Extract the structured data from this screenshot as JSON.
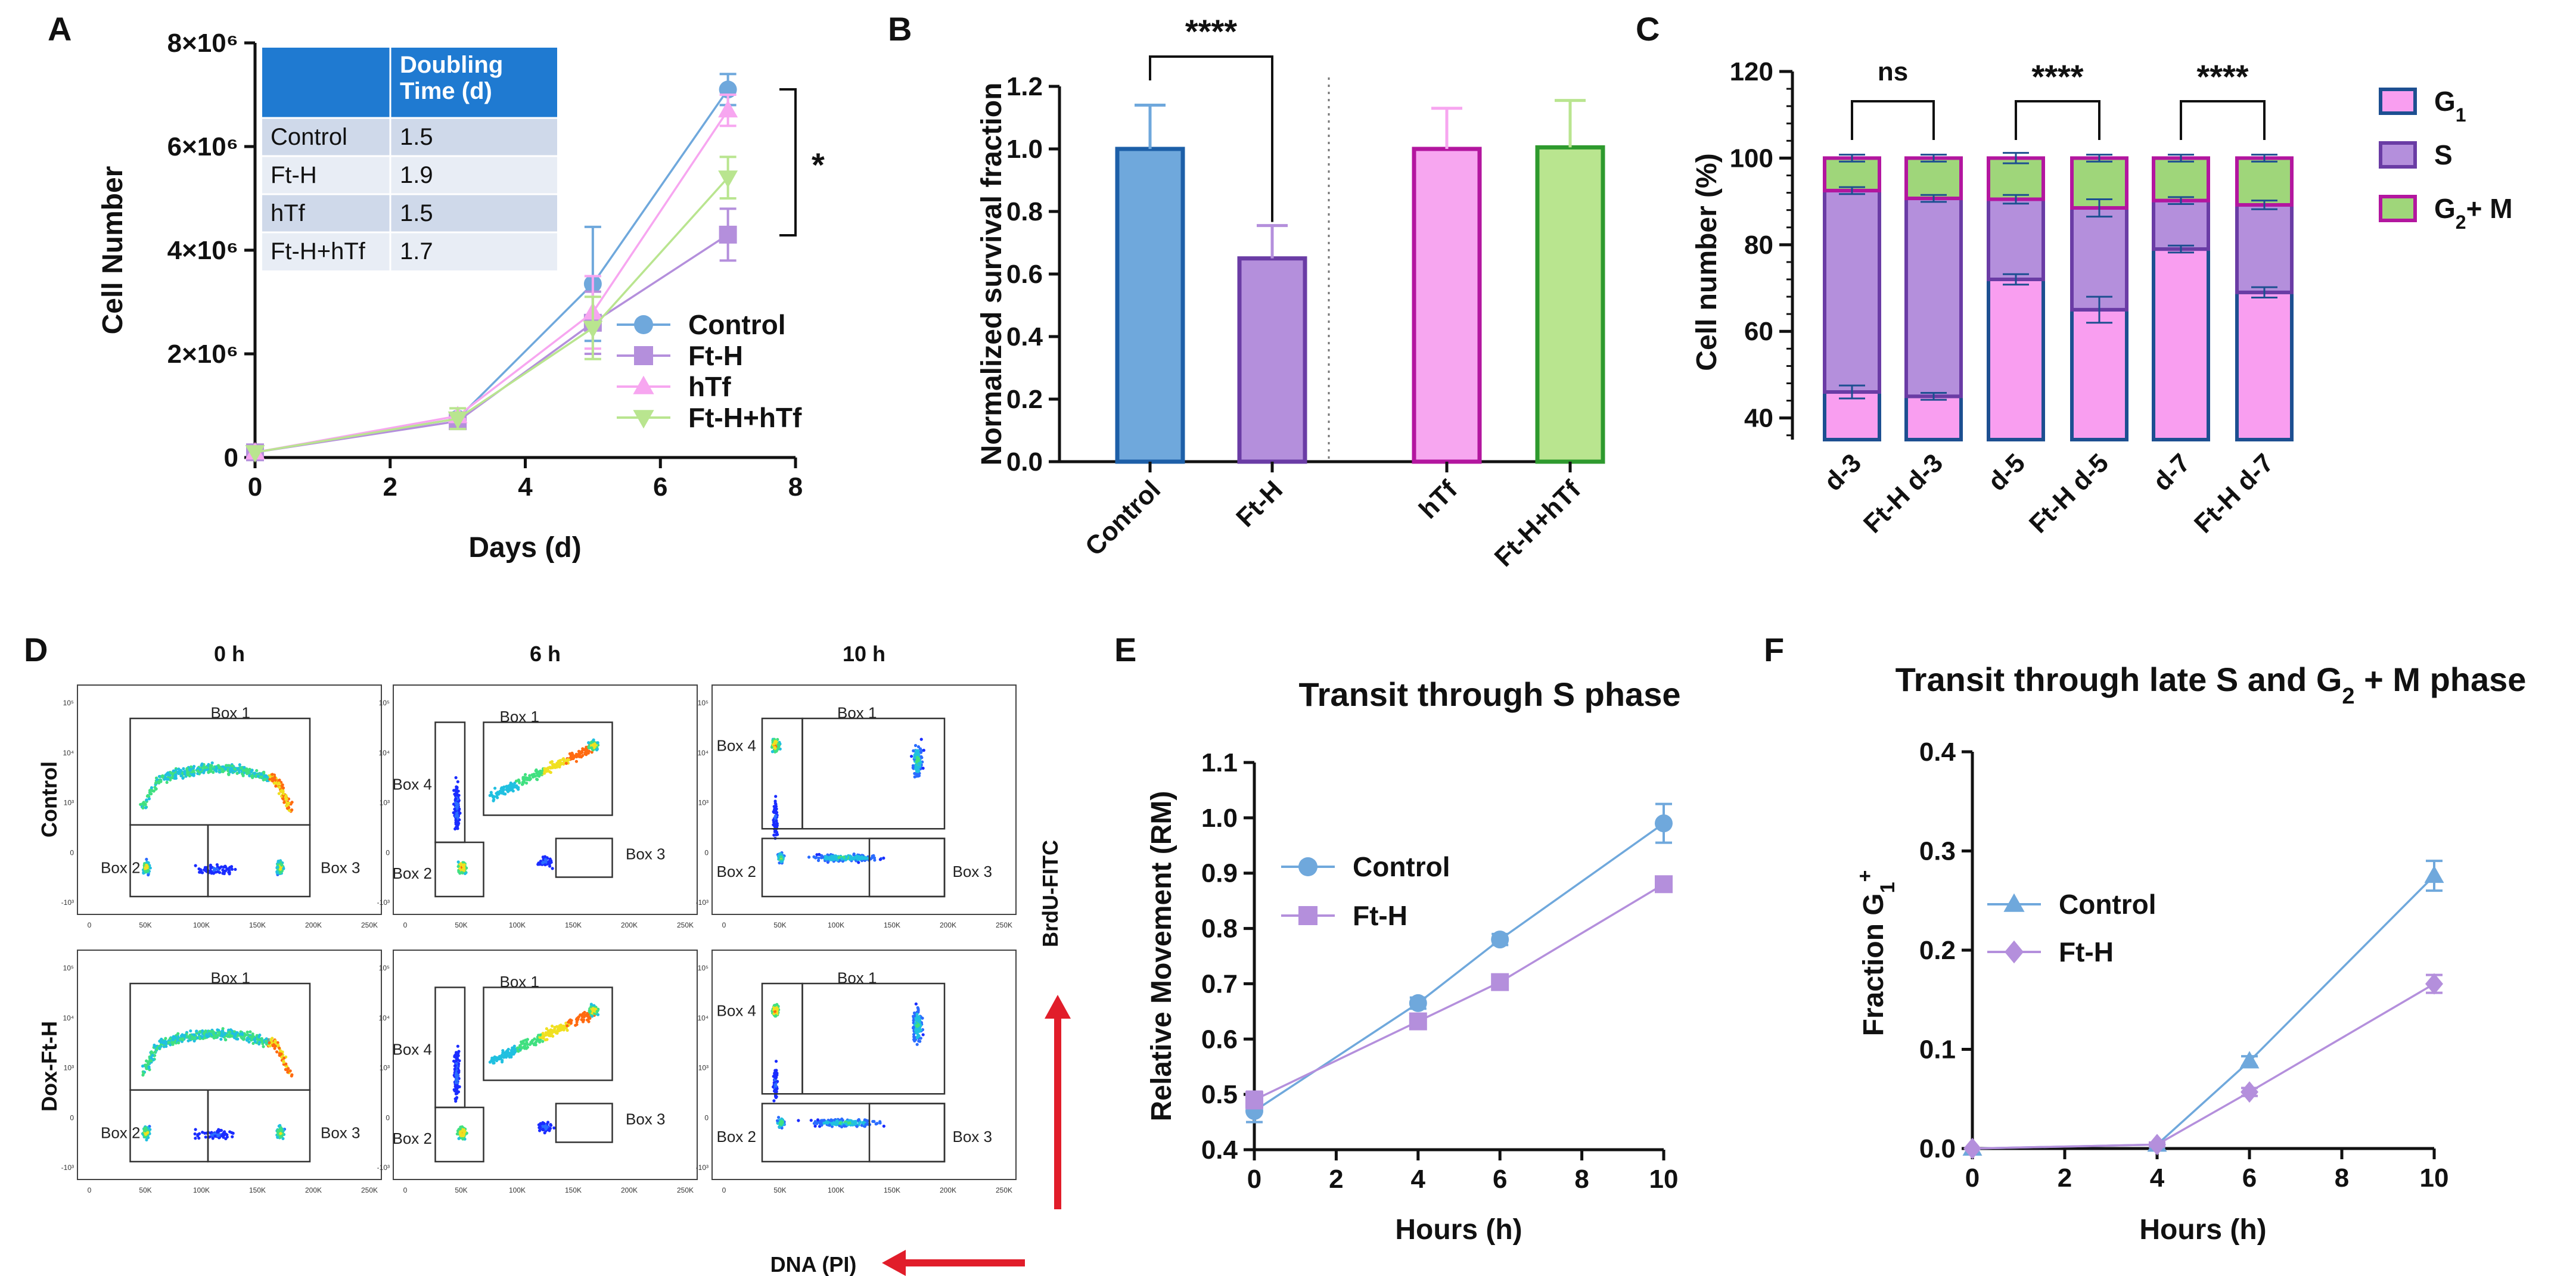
{
  "colors": {
    "control": "#6fa8dc",
    "ft_h": "#b48fdc",
    "htf": "#f7a6f0",
    "fthtf": "#b9e58f",
    "g1_fill": "#f99ef0",
    "s_fill": "#b48fdc",
    "g2m_fill": "#9fd67a",
    "table_head": "#1f7ad1",
    "table_row_a": "#cfd9ea",
    "table_row_b": "#e8edf5",
    "arrow": "#e11d2a"
  },
  "chart_data": [
    {
      "panel": "A",
      "type": "line",
      "xlabel": "Days (d)",
      "ylabel": "Cell Number",
      "x_ticks": [
        "0",
        "2",
        "4",
        "6",
        "8"
      ],
      "xlim": [
        0,
        8
      ],
      "y_ticks": [
        "0",
        "2×10⁶",
        "4×10⁶",
        "6×10⁶",
        "8×10⁶"
      ],
      "ylim": [
        0,
        8000000
      ],
      "x": [
        0,
        3,
        5,
        7
      ],
      "series": [
        {
          "name": "Control",
          "marker": "circle",
          "values": [
            100000,
            750000,
            3350000,
            7100000
          ],
          "errors": [
            0,
            60000,
            1100000,
            300000
          ]
        },
        {
          "name": "Ft-H",
          "marker": "square",
          "values": [
            100000,
            700000,
            2600000,
            4300000
          ],
          "errors": [
            0,
            50000,
            600000,
            500000
          ]
        },
        {
          "name": "hTf",
          "marker": "triangle-up",
          "values": [
            100000,
            800000,
            2800000,
            6700000
          ],
          "errors": [
            0,
            60000,
            700000,
            300000
          ]
        },
        {
          "name": "Ft-H+hTf",
          "marker": "triangle-down",
          "values": [
            100000,
            750000,
            2500000,
            5400000
          ],
          "errors": [
            0,
            200000,
            600000,
            400000
          ]
        }
      ],
      "significance": "*",
      "table": {
        "header": [
          "",
          "Doubling Time (d)"
        ],
        "rows": [
          [
            "Control",
            "1.5"
          ],
          [
            "Ft-H",
            "1.9"
          ],
          [
            "hTf",
            "1.5"
          ],
          [
            "Ft-H+hTf",
            "1.7"
          ]
        ]
      }
    },
    {
      "panel": "B",
      "type": "bar",
      "ylabel": "Normalized survival fraction",
      "categories": [
        "Control",
        "Ft-H",
        "hTf",
        "Ft-H+hTf"
      ],
      "values": [
        1.0,
        0.65,
        1.0,
        1.005
      ],
      "errors": [
        0.14,
        0.105,
        0.13,
        0.15
      ],
      "y_ticks": [
        "0.0",
        "0.2",
        "0.4",
        "0.6",
        "0.8",
        "1.0",
        "1.2"
      ],
      "ylim": [
        0,
        1.2
      ],
      "significance": "****"
    },
    {
      "panel": "C",
      "type": "bar",
      "stacked": true,
      "ylabel": "Cell number (%)",
      "categories": [
        "d-3",
        "Ft-H d-3",
        "d-5",
        "Ft-H d-5",
        "d-7",
        "Ft-H d-7"
      ],
      "series": [
        {
          "name": "G1",
          "label_main": "G",
          "label_sub": "1",
          "label_after": "",
          "tops": [
            46,
            45,
            72,
            65,
            79,
            69
          ],
          "errors": [
            1.5,
            0.8,
            1.2,
            3.0,
            0.8,
            1.2
          ]
        },
        {
          "name": "S",
          "label_main": "S",
          "label_sub": "",
          "label_after": "",
          "tops": [
            92.5,
            90.7,
            90.5,
            88.5,
            90.2,
            89.2
          ],
          "errors": [
            0.8,
            0.8,
            1.0,
            2.0,
            0.8,
            1.0
          ]
        },
        {
          "name": "G2+ M",
          "label_main": "G",
          "label_sub": "2",
          "label_after": "+ M",
          "tops": [
            100,
            100,
            100,
            100,
            100,
            100
          ],
          "errors": [
            0.8,
            0.8,
            1.2,
            0.8,
            0.8,
            0.8
          ]
        }
      ],
      "y_ticks": [
        "40",
        "60",
        "80",
        "100",
        "120"
      ],
      "ylim": [
        35,
        120
      ],
      "significance": [
        "ns",
        "****",
        "****"
      ]
    },
    {
      "panel": "E",
      "type": "line",
      "title": "Transit through S phase",
      "xlabel": "Hours (h)",
      "ylabel": "Relative Movement (RM)",
      "x_ticks": [
        "0",
        "2",
        "4",
        "6",
        "8",
        "10"
      ],
      "xlim": [
        0,
        10
      ],
      "y_ticks": [
        "0.4",
        "0.5",
        "0.6",
        "0.7",
        "0.8",
        "0.9",
        "1.0",
        "1.1"
      ],
      "ylim": [
        0.4,
        1.1
      ],
      "x": [
        0,
        4,
        6,
        10
      ],
      "series": [
        {
          "name": "Control",
          "marker": "circle",
          "values": [
            0.47,
            0.665,
            0.78,
            0.99
          ],
          "errors": [
            0.02,
            0.01,
            0.01,
            0.035
          ]
        },
        {
          "name": "Ft-H",
          "marker": "square",
          "values": [
            0.49,
            0.632,
            0.703,
            0.88
          ],
          "errors": [
            0.015,
            0.01,
            0.01,
            0.01
          ]
        }
      ]
    },
    {
      "panel": "F",
      "type": "line",
      "title_main": "Transit through late S and G",
      "title_sub": "2",
      "title_after": " + M phase",
      "xlabel": "Hours (h)",
      "ylabel_main": "Fraction G",
      "ylabel_sub": "1",
      "ylabel_sup": "+",
      "x_ticks": [
        "0",
        "2",
        "4",
        "6",
        "8",
        "10"
      ],
      "xlim": [
        0,
        10
      ],
      "y_ticks": [
        "0.0",
        "0.1",
        "0.2",
        "0.3",
        "0.4"
      ],
      "ylim": [
        0,
        0.4
      ],
      "x": [
        0,
        4,
        6,
        10
      ],
      "series": [
        {
          "name": "Control",
          "marker": "triangle-up",
          "values": [
            0.0,
            0.004,
            0.088,
            0.275
          ],
          "errors": [
            0,
            0.002,
            0.005,
            0.015
          ]
        },
        {
          "name": "Ft-H",
          "marker": "diamond",
          "values": [
            0.0,
            0.004,
            0.057,
            0.166
          ],
          "errors": [
            0,
            0.002,
            0.004,
            0.009
          ]
        }
      ]
    }
  ],
  "flow": {
    "panel": "D",
    "columns": [
      "0 h",
      "6 h",
      "10 h"
    ],
    "rows": [
      "Control",
      "Dox-Ft-H"
    ],
    "x_axis_label": "DNA (PI)",
    "y_axis_label": "BrdU-FITC",
    "x_ticks": [
      "0",
      "50K",
      "100K",
      "150K",
      "200K",
      "250K"
    ],
    "y_ticks": [
      "-10³",
      "0",
      "10³",
      "10⁴",
      "10⁵"
    ],
    "box_labels": [
      "Box 1",
      "Box 2",
      "Box 3",
      "Box 4"
    ]
  }
}
